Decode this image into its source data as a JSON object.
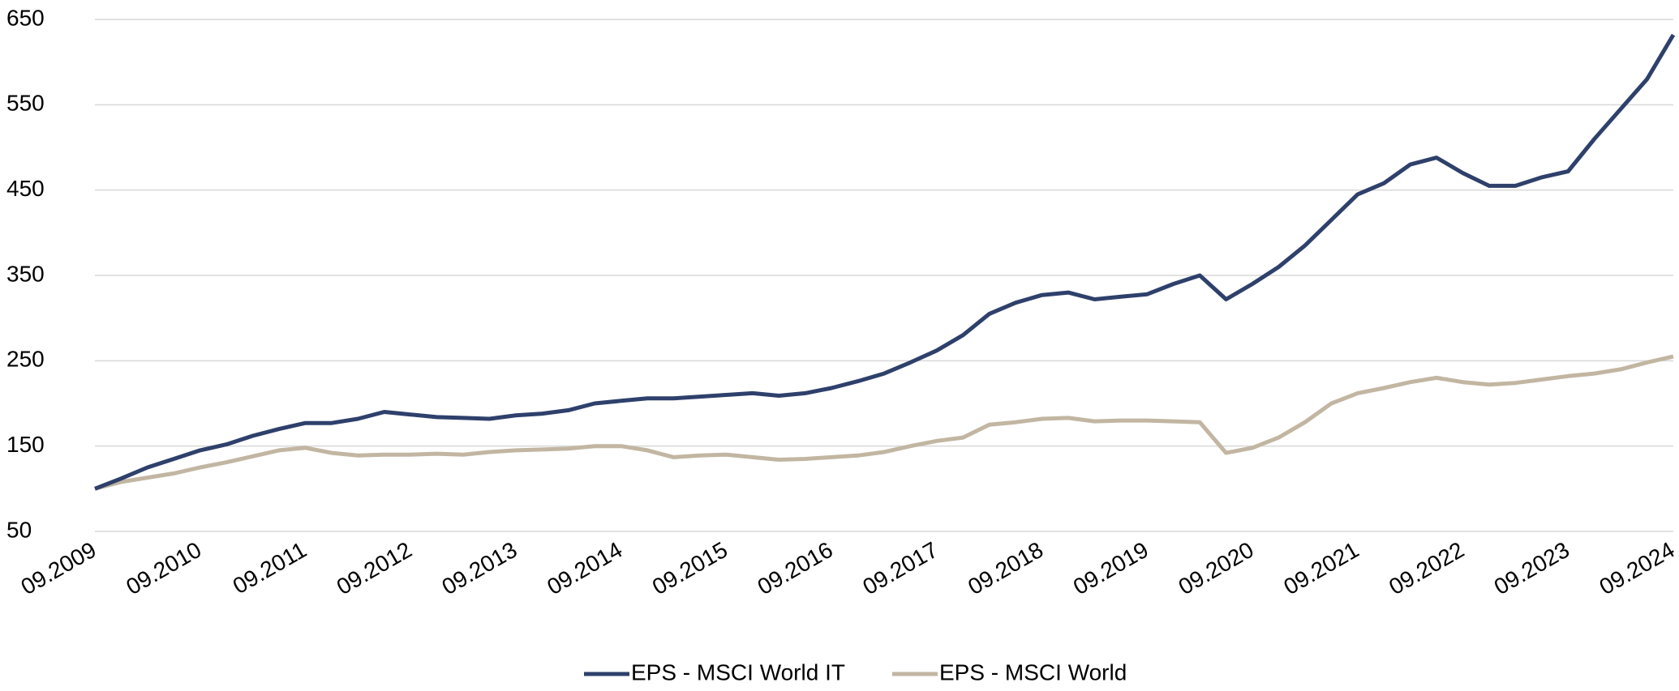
{
  "chart_data": {
    "type": "line",
    "x": [
      "09.2009",
      "12.2009",
      "03.2010",
      "06.2010",
      "09.2010",
      "12.2010",
      "03.2011",
      "06.2011",
      "09.2011",
      "12.2011",
      "03.2012",
      "06.2012",
      "09.2012",
      "12.2012",
      "03.2013",
      "06.2013",
      "09.2013",
      "12.2013",
      "03.2014",
      "06.2014",
      "09.2014",
      "12.2014",
      "03.2015",
      "06.2015",
      "09.2015",
      "12.2015",
      "03.2016",
      "06.2016",
      "09.2016",
      "12.2016",
      "03.2017",
      "06.2017",
      "09.2017",
      "12.2017",
      "03.2018",
      "06.2018",
      "09.2018",
      "12.2018",
      "03.2019",
      "06.2019",
      "09.2019",
      "12.2019",
      "03.2020",
      "06.2020",
      "09.2020",
      "12.2020",
      "03.2021",
      "06.2021",
      "09.2021",
      "12.2021",
      "03.2022",
      "06.2022",
      "09.2022",
      "12.2022",
      "03.2023",
      "06.2023",
      "09.2023",
      "12.2023",
      "03.2024",
      "06.2024",
      "09.2024"
    ],
    "xticks": [
      "09.2009",
      "09.2010",
      "09.2011",
      "09.2012",
      "09.2013",
      "09.2014",
      "09.2015",
      "09.2016",
      "09.2017",
      "09.2018",
      "09.2019",
      "09.2020",
      "09.2021",
      "09.2022",
      "09.2023",
      "09.2024"
    ],
    "series": [
      {
        "name": "EPS - MSCI World IT",
        "color": "#2e406b",
        "values": [
          100,
          112,
          125,
          135,
          145,
          152,
          162,
          170,
          177,
          177,
          182,
          190,
          187,
          184,
          183,
          182,
          186,
          188,
          192,
          200,
          203,
          206,
          206,
          208,
          210,
          212,
          209,
          212,
          218,
          226,
          235,
          248,
          262,
          280,
          305,
          318,
          327,
          330,
          322,
          325,
          328,
          340,
          350,
          322,
          340,
          360,
          385,
          415,
          445,
          458,
          480,
          488,
          470,
          455,
          455,
          465,
          472,
          510,
          545,
          580,
          632
        ]
      },
      {
        "name": "EPS - MSCI World",
        "color": "#c2b6a2",
        "values": [
          100,
          108,
          113,
          118,
          125,
          131,
          138,
          145,
          148,
          142,
          139,
          140,
          140,
          141,
          140,
          143,
          145,
          146,
          147,
          150,
          150,
          145,
          137,
          139,
          140,
          137,
          134,
          135,
          137,
          139,
          143,
          150,
          156,
          160,
          175,
          178,
          182,
          183,
          179,
          180,
          180,
          179,
          178,
          142,
          148,
          160,
          178,
          200,
          212,
          218,
          225,
          230,
          225,
          222,
          224,
          228,
          232,
          235,
          240,
          248,
          255
        ]
      }
    ],
    "ylim": [
      50,
      650
    ],
    "yticks": [
      50,
      150,
      250,
      350,
      450,
      550,
      650
    ],
    "grid": true,
    "legend": "bottom"
  }
}
